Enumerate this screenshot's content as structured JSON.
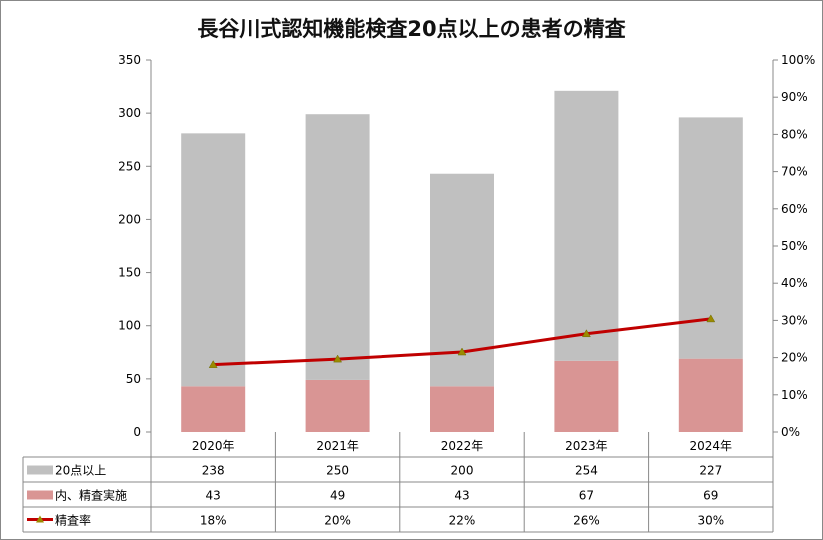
{
  "chart_data": {
    "type": "bar",
    "title": "長谷川式認知機能検査20点以上の患者の精査",
    "categories": [
      "2020年",
      "2021年",
      "2022年",
      "2023年",
      "2024年"
    ],
    "series": [
      {
        "name": "20点以上",
        "kind": "stacked-bar",
        "color": "#c0c0c0",
        "values": [
          238,
          250,
          200,
          254,
          227
        ],
        "labels": [
          "238",
          "250",
          "200",
          "254",
          "227"
        ]
      },
      {
        "name": "内、精査実施",
        "kind": "stacked-bar",
        "color": "#d99594",
        "values": [
          43,
          49,
          43,
          67,
          69
        ],
        "labels": [
          "43",
          "49",
          "43",
          "67",
          "69"
        ]
      },
      {
        "name": "精査率",
        "kind": "line",
        "axis": "right",
        "color": "#c00000",
        "marker_color": "#9bbb59",
        "values": [
          0.181,
          0.196,
          0.215,
          0.264,
          0.304
        ],
        "labels": [
          "18%",
          "20%",
          "22%",
          "26%",
          "30%"
        ]
      }
    ],
    "ylim": [
      0,
      350
    ],
    "yticks": [
      "0",
      "50",
      "100",
      "150",
      "200",
      "250",
      "300",
      "350"
    ],
    "y2lim": [
      0,
      1
    ],
    "y2ticks": [
      "0%",
      "10%",
      "20%",
      "30%",
      "40%",
      "50%",
      "60%",
      "70%",
      "80%",
      "90%",
      "100%"
    ],
    "grid": false,
    "legend": "data-table"
  }
}
